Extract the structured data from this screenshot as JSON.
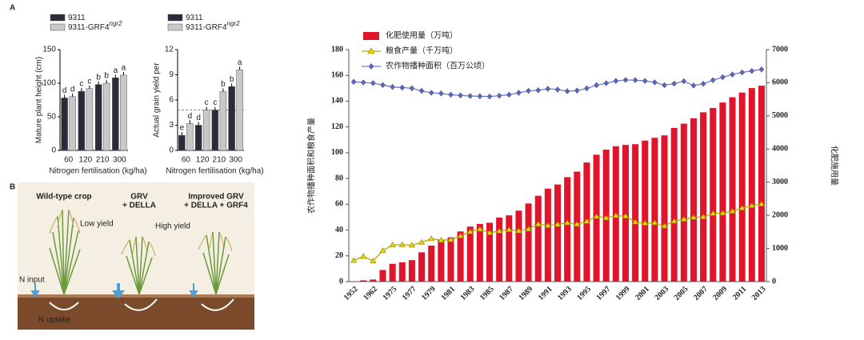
{
  "panel_labels": [
    "A",
    "B"
  ],
  "illustration": {
    "columns": [
      {
        "title": "Wild-type crop",
        "yield_label": "Low yield"
      },
      {
        "title": "GRV",
        "subtitle": "+ DELLA",
        "yield_label": "High yield"
      },
      {
        "title": "Improved GRV",
        "subtitle": "+ DELLA + GRF4"
      }
    ],
    "n_input": "N input",
    "n_uptake": "N uptake"
  },
  "chart_data": [
    {
      "type": "bar",
      "y_label": "Mature plant height (cm)",
      "x_label": "Nitrogen fertilisation (kg/ha)",
      "categories": [
        "60",
        "120",
        "210",
        "300"
      ],
      "series": [
        {
          "name": "9311",
          "color": "#2b2b3a",
          "values": [
            78,
            88,
            98,
            108
          ],
          "letters": [
            "d",
            "c",
            "b",
            "a"
          ]
        },
        {
          "name": "9311-GRF4",
          "name_superscript": "ngr2",
          "color": "#c8c8c8",
          "values": [
            80,
            92,
            100,
            112
          ],
          "letters": [
            "d",
            "c",
            "b",
            "a"
          ]
        }
      ],
      "ylim": [
        0,
        150
      ],
      "yticks": [
        0,
        50,
        100,
        150
      ]
    },
    {
      "type": "bar",
      "y_label": "Actual grain yield per",
      "x_label": "Nitrogen fertilisation (kg/ha)",
      "categories": [
        "60",
        "120",
        "210",
        "300"
      ],
      "series": [
        {
          "name": "9311",
          "color": "#2b2b3a",
          "values": [
            1.8,
            3.0,
            4.8,
            7.6
          ],
          "letters": [
            "e",
            "d",
            "c",
            "b"
          ]
        },
        {
          "name": "9311-GRF4",
          "name_superscript": "ngr2",
          "color": "#c8c8c8",
          "values": [
            3.2,
            4.8,
            7.0,
            9.6
          ],
          "letters": [
            "d",
            "c",
            "b",
            "a"
          ]
        }
      ],
      "reference_line": 4.8,
      "reference_color": "#e05050",
      "ylim": [
        0,
        12
      ],
      "yticks": [
        0,
        3,
        6,
        9,
        12
      ]
    },
    {
      "type": "combo",
      "y_label": "农作物播种面积和粮食产量",
      "y2_label": "化肥施用量",
      "categories": [
        "1952",
        null,
        "1962",
        null,
        "1975",
        null,
        "1977",
        null,
        "1979",
        null,
        "1981",
        null,
        "1983",
        null,
        "1985",
        null,
        "1987",
        null,
        "1989",
        null,
        "1991",
        null,
        "1993",
        null,
        "1995",
        null,
        "1997",
        null,
        "1999",
        null,
        "2001",
        null,
        "2003",
        null,
        "2005",
        null,
        "2007",
        null,
        "2009",
        null,
        "2011",
        null,
        "2013"
      ],
      "series": [
        {
          "name": "化肥使用量（万吨）",
          "kind": "bar",
          "axis": "y2",
          "color": "#e0142a",
          "values": [
            7.8,
            37.3,
            63.0,
            351.2,
            536.9,
            582.8,
            648,
            884,
            1086,
            1269,
            1335,
            1513,
            1660,
            1740,
            1776,
            1931,
            1999,
            2142,
            2357,
            2590,
            2805,
            2930,
            3152,
            3318,
            3594,
            3828,
            3981,
            4084,
            4124,
            4146,
            4254,
            4339,
            4412,
            4637,
            4766,
            4928,
            5108,
            5239,
            5404,
            5562,
            5704,
            5839,
            5912
          ]
        },
        {
          "name": "粮食产量（千万吨）",
          "kind": "line",
          "marker": "triangle",
          "color": "#e8d800",
          "values": [
            16.4,
            19.5,
            16.0,
            24.0,
            28.5,
            28.6,
            28.3,
            30.5,
            33.2,
            32.1,
            32.5,
            35.4,
            38.7,
            40.7,
            37.9,
            39.2,
            40.3,
            39.4,
            40.8,
            44.6,
            43.5,
            44.3,
            45.6,
            44.5,
            46.7,
            50.5,
            49.4,
            51.2,
            50.8,
            46.2,
            45.3,
            45.7,
            43.1,
            46.9,
            48.4,
            49.8,
            50.2,
            52.9,
            53.1,
            54.6,
            57.1,
            59.0,
            60.2
          ]
        },
        {
          "name": "农作物播种面积（百万公顷）",
          "kind": "line",
          "marker": "diamond",
          "color": "#5b86c6",
          "marker_color": "#6464b4",
          "values": [
            155,
            154.5,
            154,
            152.5,
            151,
            150.5,
            150,
            148,
            146.5,
            146,
            145,
            144.5,
            144,
            143.8,
            143.6,
            144.2,
            145,
            146.5,
            148,
            148.4,
            149.6,
            149.0,
            147.7,
            148.2,
            149.9,
            152.4,
            153.9,
            155.7,
            156.4,
            156.3,
            155.7,
            154.6,
            152.4,
            153.6,
            155.5,
            152.1,
            153.5,
            156.3,
            158.6,
            160.7,
            162.3,
            163.4,
            164.6
          ]
        }
      ],
      "ylim": [
        0,
        180
      ],
      "yticks": [
        0,
        20,
        40,
        60,
        80,
        100,
        120,
        140,
        160,
        180
      ],
      "y2lim": [
        0,
        7000
      ],
      "y2ticks": [
        0,
        1000,
        2000,
        3000,
        4000,
        5000,
        6000,
        7000
      ],
      "legend": "top-left"
    }
  ]
}
